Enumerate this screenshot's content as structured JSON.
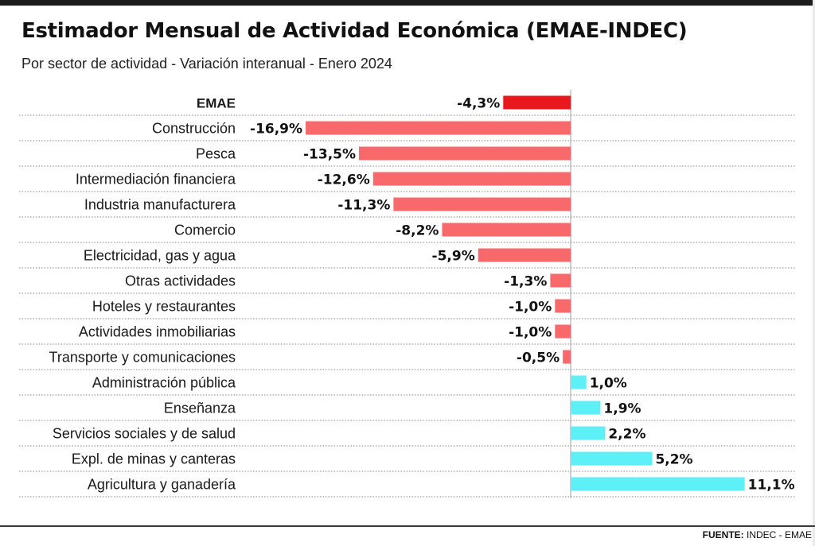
{
  "chart_data": {
    "type": "bar",
    "orientation": "horizontal",
    "title": "Estimador Mensual de Actividad Económica (EMAE-INDEC)",
    "subtitle": "Por sector de actividad - Variación interanual - Enero 2024",
    "value_suffix": "%",
    "decimal_separator": ",",
    "categories": [
      "EMAE",
      "Construcción",
      "Pesca",
      "Intermediación financiera",
      "Industria manufacturera",
      "Comercio",
      "Electricidad, gas y agua",
      "Otras actividades",
      "Hoteles y restaurantes",
      "Actividades inmobiliarias",
      "Transporte y comunicaciones",
      "Administración pública",
      "Enseñanza",
      "Servicios sociales y de salud",
      "Expl. de minas y canteras",
      "Agricultura y ganadería"
    ],
    "values": [
      -4.3,
      -16.9,
      -13.5,
      -12.6,
      -11.3,
      -8.2,
      -5.9,
      -1.3,
      -1.0,
      -1.0,
      -0.5,
      1.0,
      1.9,
      2.2,
      5.2,
      11.1
    ],
    "value_labels": [
      "-4,3%",
      "-16,9%",
      "-13,5%",
      "-12,6%",
      "-11,3%",
      "-8,2%",
      "-5,9%",
      "-1,3%",
      "-1,0%",
      "-1,0%",
      "-0,5%",
      "1,0%",
      "1,9%",
      "2,2%",
      "5,2%",
      "11,1%"
    ],
    "highlight": "EMAE",
    "xlim": [
      -16.9,
      11.1
    ],
    "colors": {
      "total": "#e8181c",
      "negative": "#f9696b",
      "positive": "#5ef0f7",
      "gridline": "#9e9e9e",
      "zero_line": "#9e9e9e"
    }
  },
  "footer": {
    "source_label": "FUENTE:",
    "source_text": " INDEC - EMAE"
  }
}
